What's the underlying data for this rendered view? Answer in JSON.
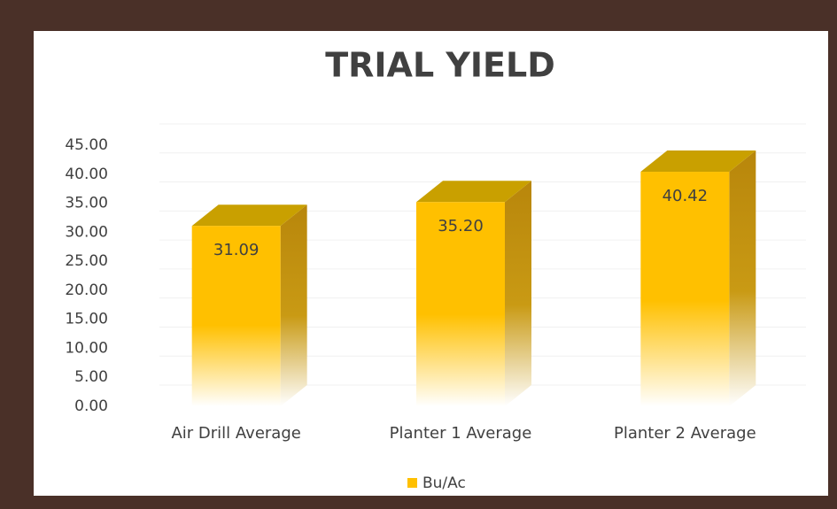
{
  "chart_data": {
    "type": "bar3d",
    "title": "TRIAL YIELD",
    "categories": [
      "Air Drill Average",
      "Planter 1 Average",
      "Planter 2 Average"
    ],
    "series": [
      {
        "name": "Bu/Ac",
        "color": "#ffc000",
        "values": [
          31.09,
          35.2,
          40.42
        ],
        "value_labels": [
          "31.09",
          "35.20",
          "40.42"
        ]
      }
    ],
    "ylim": [
      0,
      45
    ],
    "yticks": [
      {
        "value": 0,
        "label": "0.00"
      },
      {
        "value": 5,
        "label": "5.00"
      },
      {
        "value": 10,
        "label": "10.00"
      },
      {
        "value": 15,
        "label": "15.00"
      },
      {
        "value": 20,
        "label": "20.00"
      },
      {
        "value": 25,
        "label": "25.00"
      },
      {
        "value": 30,
        "label": "30.00"
      },
      {
        "value": 35,
        "label": "35.00"
      },
      {
        "value": 40,
        "label": "40.00"
      },
      {
        "value": 45,
        "label": "45.00"
      }
    ],
    "grid": true,
    "legend": "bottom"
  }
}
